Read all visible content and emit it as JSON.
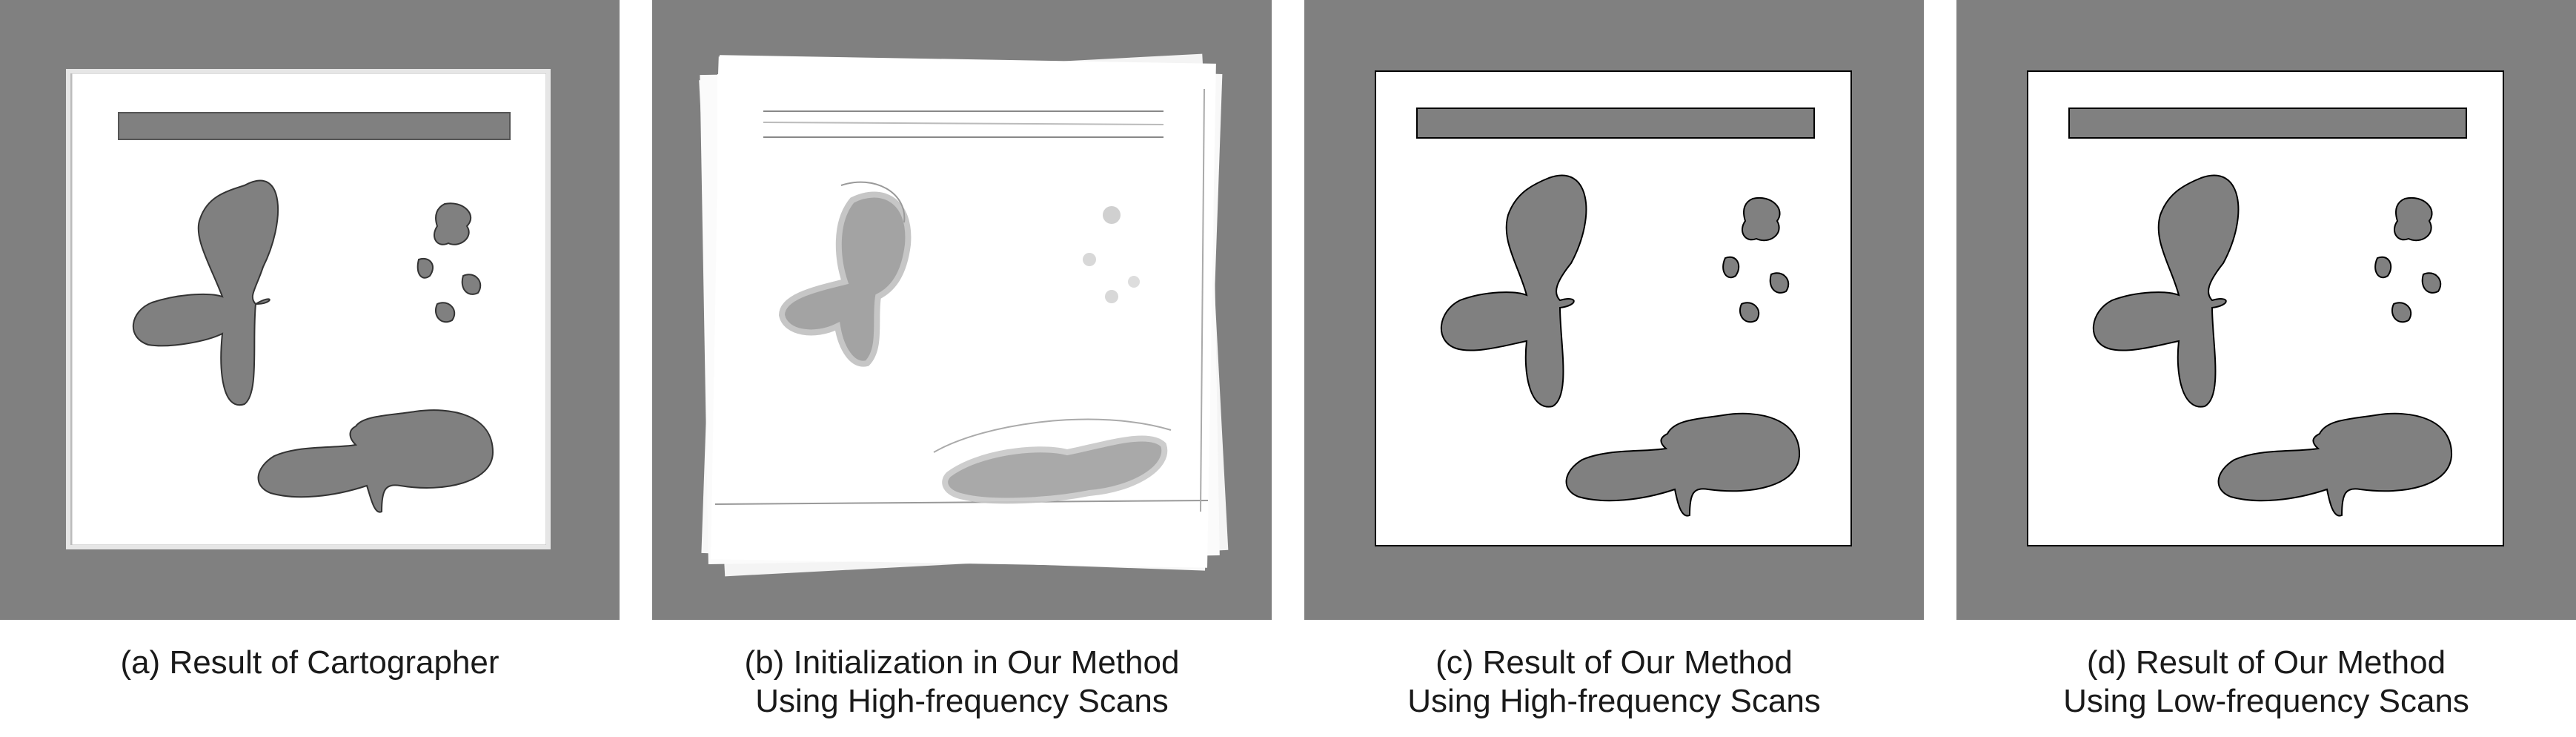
{
  "panels": [
    {
      "label": "(a) Result of Cartographer",
      "line2": ""
    },
    {
      "label": "(b) Initialization in Our Method",
      "line2": "Using High-frequency Scans"
    },
    {
      "label": "(c) Result of Our Method",
      "line2": "Using High-frequency Scans"
    },
    {
      "label": "(d) Result of Our Method",
      "line2": "Using Low-frequency Scans"
    }
  ],
  "colors": {
    "unknown": "#808080",
    "free": "#ffffff",
    "occupied": "#000000"
  }
}
